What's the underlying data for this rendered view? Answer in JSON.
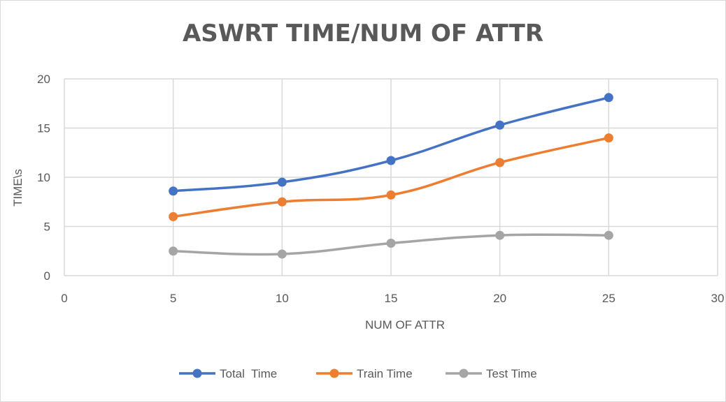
{
  "chart_data": {
    "type": "line",
    "title": "ASWRT TIME/NUM OF ATTR",
    "xlabel": "NUM OF ATTR",
    "ylabel": "TIME\\s",
    "xlim": [
      0,
      30
    ],
    "ylim": [
      0,
      20
    ],
    "x_ticks": [
      0,
      5,
      10,
      15,
      20,
      25,
      30
    ],
    "y_ticks": [
      0,
      5,
      10,
      15,
      20
    ],
    "grid": true,
    "smooth": true,
    "legend_position": "bottom",
    "x": [
      5,
      10,
      15,
      20,
      25
    ],
    "series": [
      {
        "name": "Total  Time",
        "color": "#4472C4",
        "values": [
          8.6,
          9.5,
          11.7,
          15.3,
          18.1
        ]
      },
      {
        "name": "Train Time",
        "color": "#ED7D31",
        "values": [
          6.0,
          7.5,
          8.2,
          11.5,
          14.0
        ]
      },
      {
        "name": "Test Time",
        "color": "#A5A5A5",
        "values": [
          2.5,
          2.2,
          3.3,
          4.1,
          4.1
        ]
      }
    ]
  }
}
